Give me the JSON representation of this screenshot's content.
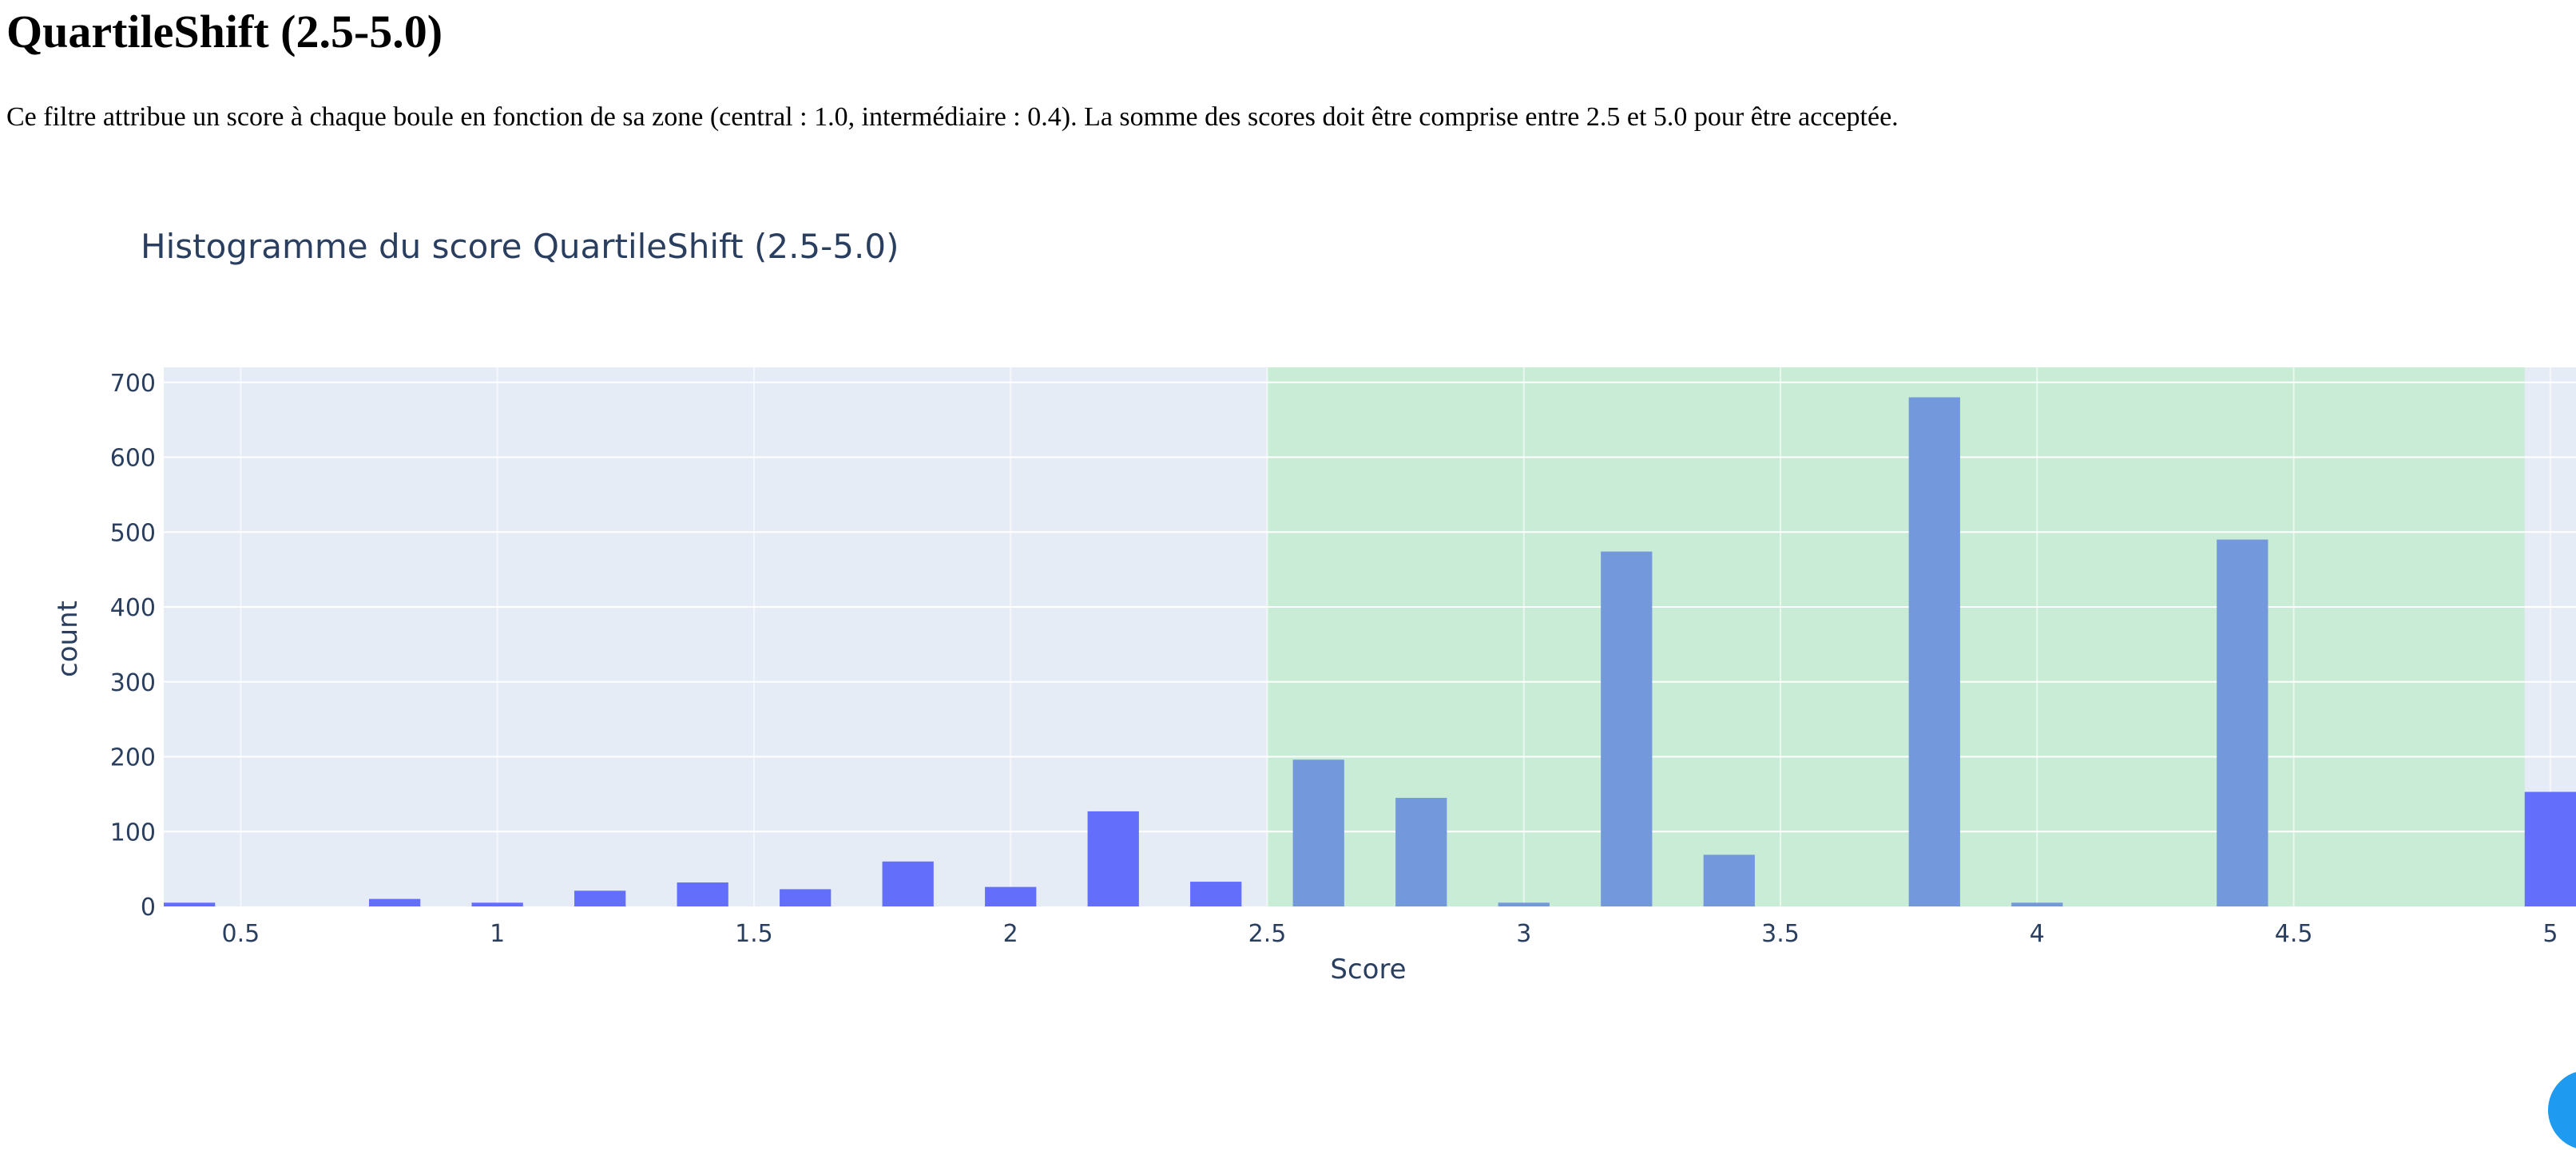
{
  "page": {
    "title": "QuartileShift (2.5-5.0)",
    "description": "Ce filtre attribue un score à chaque boule en fonction de sa zone (central : 1.0, intermédiaire : 0.4). La somme des scores doit être comprise entre 2.5 et 5.0 pour être acceptée."
  },
  "chart_data": {
    "type": "bar",
    "title": "Histogramme du score QuartileShift (2.5-5.0)",
    "xlabel": "Score",
    "ylabel": "count",
    "xlim": [
      0.35,
      5.05
    ],
    "ylim": [
      0,
      720
    ],
    "x_ticks": [
      "0.5",
      "1",
      "1.5",
      "2",
      "2.5",
      "3",
      "3.5",
      "4",
      "4.5",
      "5"
    ],
    "y_ticks": [
      "0",
      "100",
      "200",
      "300",
      "400",
      "500",
      "600",
      "700"
    ],
    "bin_width": 0.2,
    "bar_fraction": 0.5,
    "highlight_range": [
      2.5,
      4.95
    ],
    "highlight_color": "#c8ecd5",
    "bar_color": "#636efa",
    "highlighted_bar_color": "#7399dc",
    "plot_bg": "#e5ecf6",
    "grid": true,
    "x": [
      0.4,
      0.6,
      0.8,
      1.0,
      1.2,
      1.4,
      1.6,
      1.8,
      2.0,
      2.2,
      2.4,
      2.6,
      2.8,
      3.0,
      3.2,
      3.4,
      3.6,
      3.8,
      4.0,
      4.2,
      4.4,
      4.6,
      4.8,
      5.0
    ],
    "values": [
      5,
      0,
      10,
      5,
      21,
      32,
      23,
      60,
      26,
      127,
      33,
      196,
      145,
      5,
      474,
      69,
      0,
      680,
      5,
      0,
      490,
      0,
      0,
      153
    ]
  }
}
